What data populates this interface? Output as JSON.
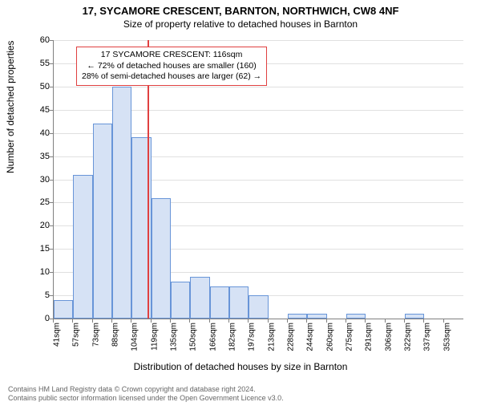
{
  "title_main": "17, SYCAMORE CRESCENT, BARNTON, NORTHWICH, CW8 4NF",
  "title_sub": "Size of property relative to detached houses in Barnton",
  "ylabel": "Number of detached properties",
  "xlabel": "Distribution of detached houses by size in Barnton",
  "footer_line1": "Contains HM Land Registry data © Crown copyright and database right 2024.",
  "footer_line2": "Contains public sector information licensed under the Open Government Licence v3.0.",
  "chart": {
    "type": "histogram",
    "bar_fill": "#d6e2f5",
    "bar_border": "#6895d8",
    "grid_color": "#e0e0e0",
    "axis_color": "#808080",
    "background": "#ffffff",
    "ylim": [
      0,
      60
    ],
    "ytick_step": 5,
    "x_labels": [
      "41sqm",
      "57sqm",
      "73sqm",
      "88sqm",
      "104sqm",
      "119sqm",
      "135sqm",
      "150sqm",
      "166sqm",
      "182sqm",
      "197sqm",
      "213sqm",
      "228sqm",
      "244sqm",
      "260sqm",
      "275sqm",
      "291sqm",
      "306sqm",
      "322sqm",
      "337sqm",
      "353sqm"
    ],
    "values": [
      4,
      31,
      42,
      50,
      39,
      26,
      8,
      9,
      7,
      7,
      5,
      0,
      1,
      1,
      0,
      1,
      0,
      0,
      1,
      0,
      0
    ],
    "bar_width_ratio": 1.0
  },
  "marker": {
    "color": "#e04040",
    "position_index": 4.8,
    "callout_lines": [
      "17 SYCAMORE CRESCENT: 116sqm",
      "← 72% of detached houses are smaller (160)",
      "28% of semi-detached houses are larger (62) →"
    ]
  }
}
